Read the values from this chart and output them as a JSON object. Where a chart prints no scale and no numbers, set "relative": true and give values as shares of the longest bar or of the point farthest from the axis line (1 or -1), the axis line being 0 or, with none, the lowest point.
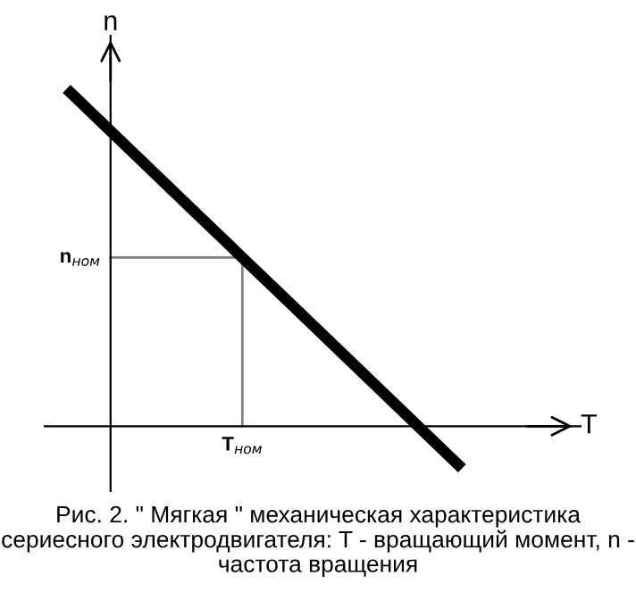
{
  "chart_data": {
    "type": "line",
    "relative": true,
    "xlabel": "T",
    "ylabel": "n",
    "categories": [
      null,
      null,
      null,
      null,
      null,
      null,
      null,
      null,
      null,
      null
    ],
    "series": [
      {
        "color": "#000000",
        "values": [
          1,
          0.875,
          0.75,
          0.625,
          0.5,
          0.375,
          0.25,
          0.125,
          0,
          -0.125
        ]
      }
    ],
    "annotations": [
      "n$_{ном}$",
      "T$_{ном}$",
      "Рис. 2. \" Мягкая \" механическая характеристика сериесного электродвигателя: T - вращающий момент, n - частота вращения"
    ],
    "legend": false
  }
}
